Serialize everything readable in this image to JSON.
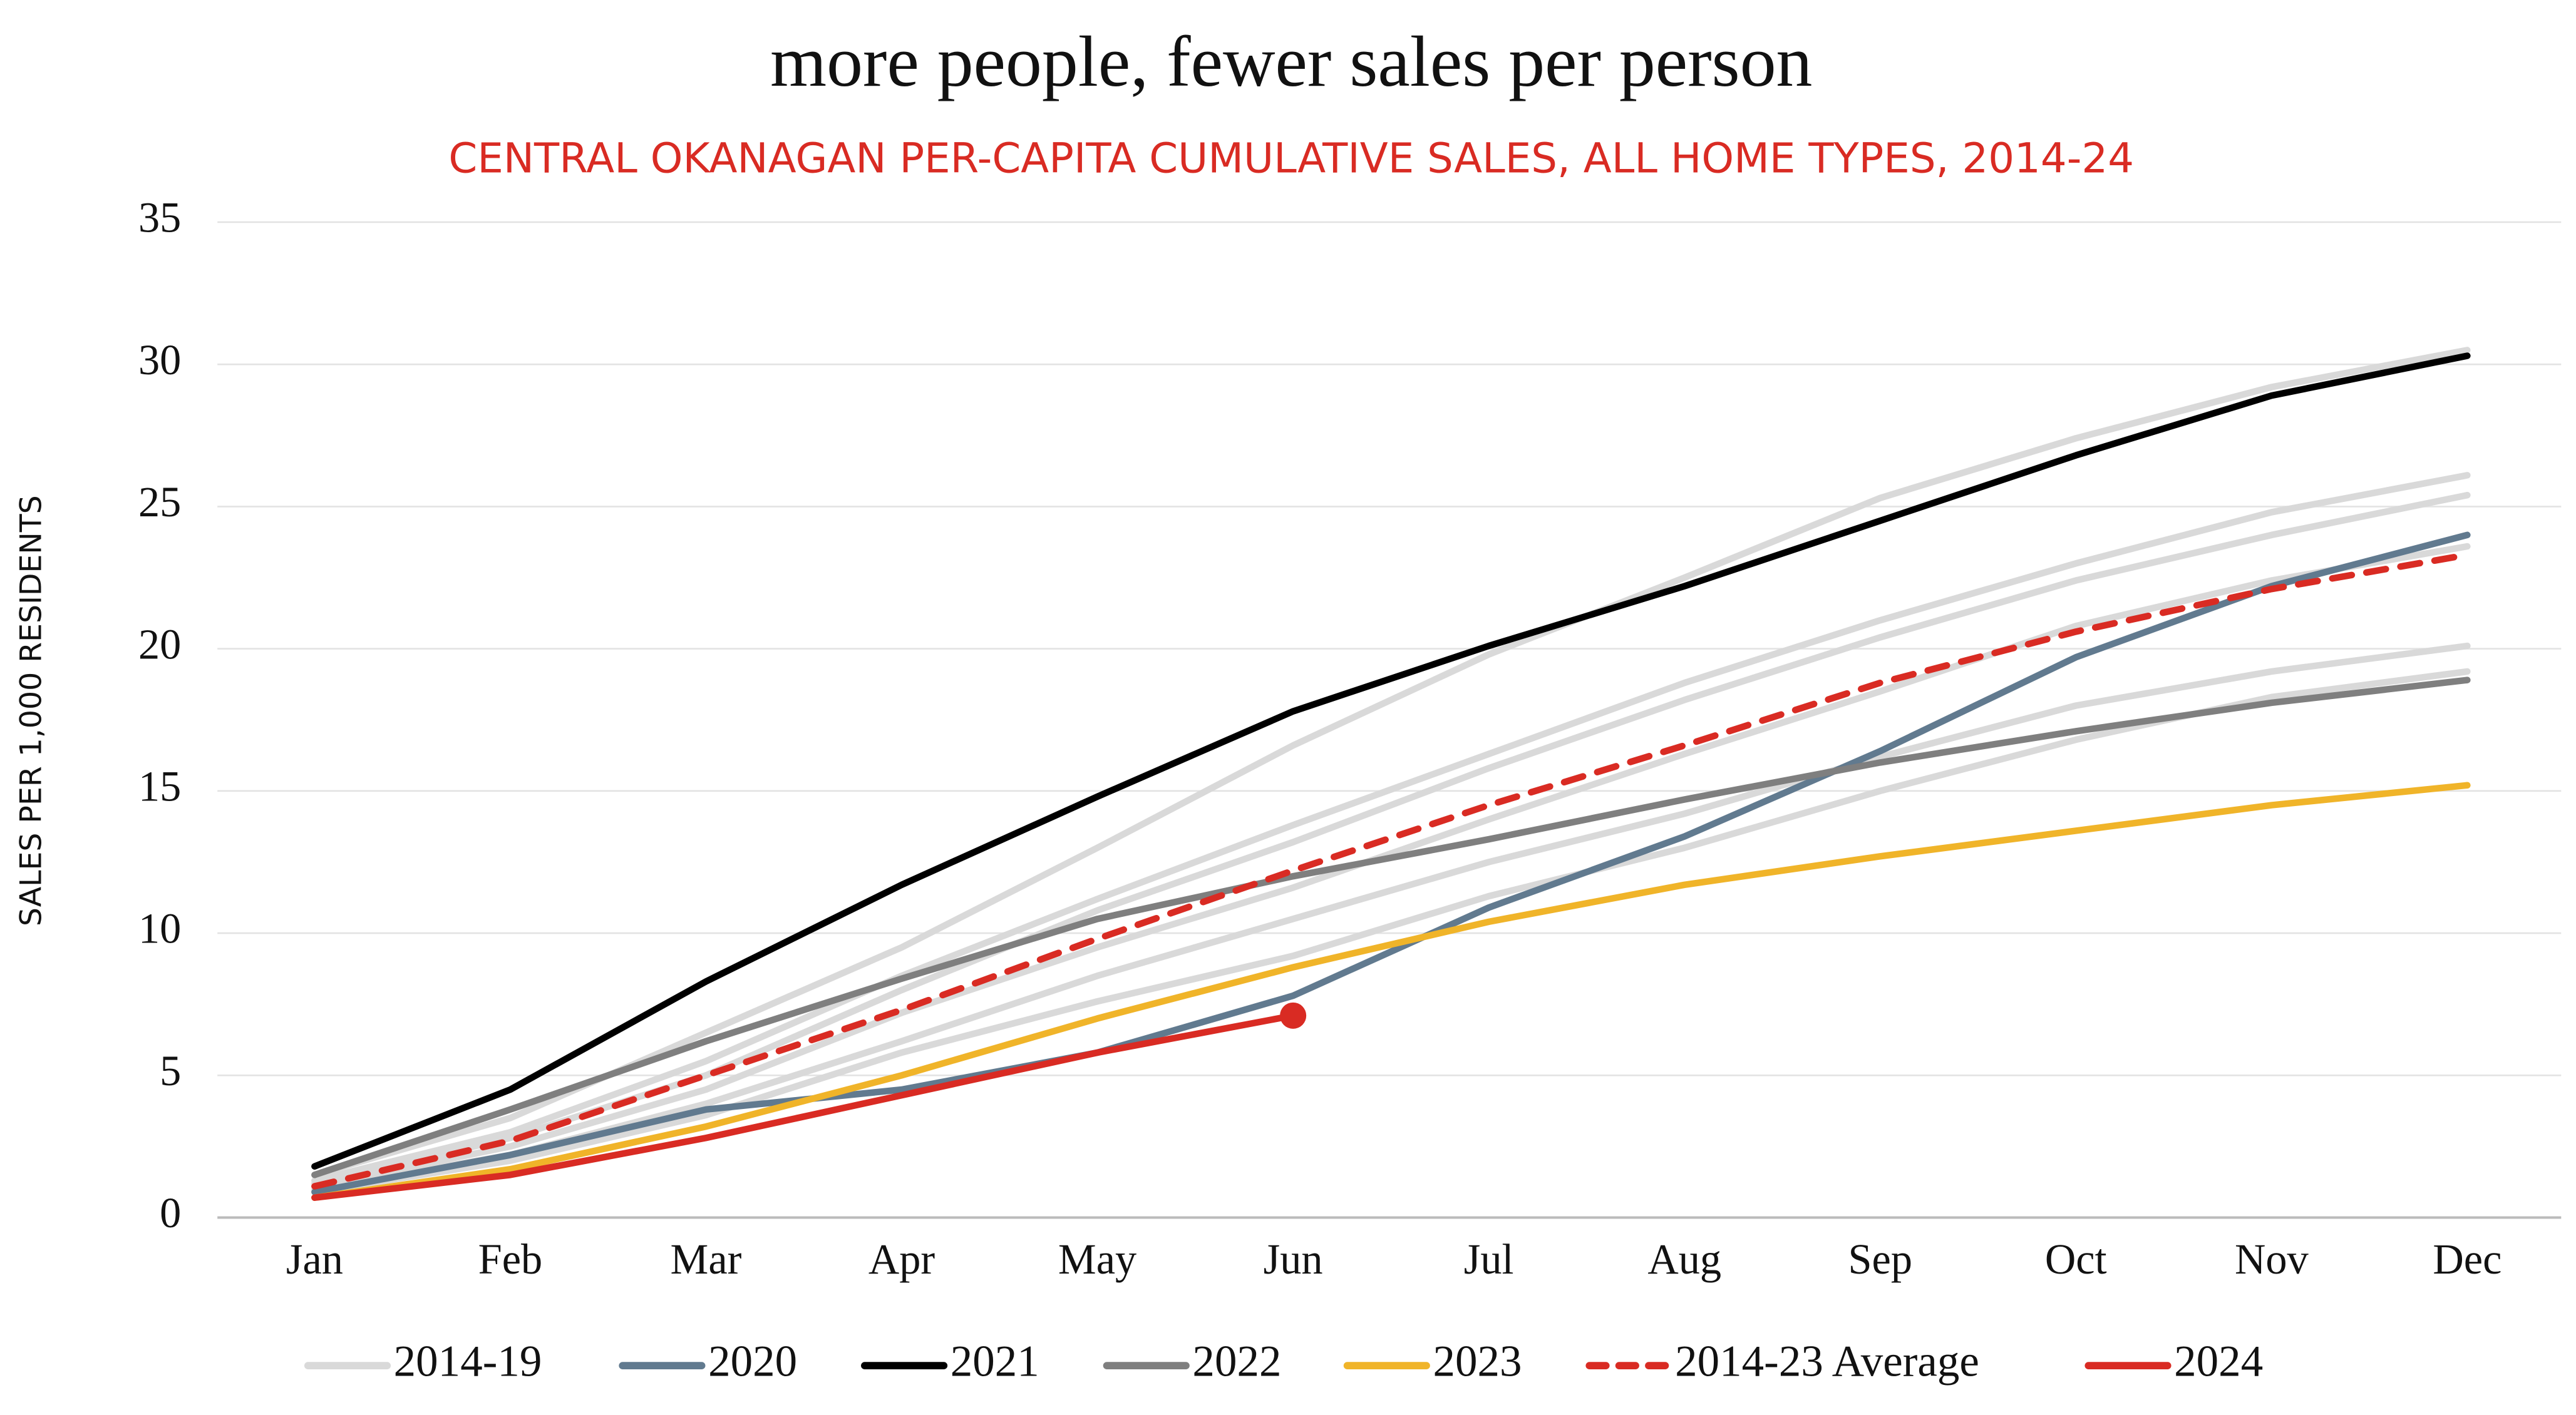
{
  "chart_data": {
    "type": "line",
    "title": "more people, fewer sales per person",
    "subtitle": "CENTRAL OKANAGAN PER-CAPITA CUMULATIVE SALES, ALL HOME TYPES, 2014-24",
    "y_label": "SALES PER 1,000 RESIDENTS",
    "categories": [
      "Jan",
      "Feb",
      "Mar",
      "Apr",
      "May",
      "Jun",
      "Jul",
      "Aug",
      "Sep",
      "Oct",
      "Nov",
      "Dec"
    ],
    "ylim": [
      0,
      35
    ],
    "yticks": [
      0,
      5,
      10,
      15,
      20,
      25,
      30,
      35
    ],
    "grid": true,
    "legend": "bottom",
    "series": [
      {
        "name": "2014-19",
        "color": "#d9d9d9",
        "width": 4,
        "values": [
          [
            1.5,
            3.5,
            6.5,
            9.5,
            13,
            16.6,
            19.8,
            22.5,
            25.3,
            27.4,
            29.2,
            30.5
          ],
          [
            1.3,
            3.0,
            5.5,
            8.5,
            11.2,
            13.8,
            16.3,
            18.8,
            21.0,
            23.0,
            24.8,
            26.1
          ],
          [
            1.2,
            2.8,
            5.0,
            8.0,
            10.8,
            13.2,
            15.8,
            18.2,
            20.4,
            22.4,
            24.0,
            25.4
          ],
          [
            1.1,
            2.5,
            4.5,
            7.2,
            9.5,
            11.6,
            14.0,
            16.3,
            18.5,
            20.8,
            22.4,
            23.6
          ],
          [
            1.0,
            2.2,
            4.0,
            6.2,
            8.5,
            10.5,
            12.5,
            14.2,
            16.2,
            18.0,
            19.2,
            20.1
          ],
          [
            0.9,
            2.0,
            3.6,
            5.8,
            7.6,
            9.2,
            11.3,
            13.0,
            15.0,
            16.8,
            18.3,
            19.2
          ]
        ]
      },
      {
        "name": "2020",
        "color": "#617a8f",
        "width": 4,
        "values": [
          0.9,
          2.2,
          3.8,
          4.5,
          5.8,
          7.8,
          10.9,
          13.4,
          16.4,
          19.7,
          22.2,
          24.0
        ]
      },
      {
        "name": "2021",
        "color": "#000000",
        "width": 4,
        "values": [
          1.8,
          4.5,
          8.3,
          11.7,
          14.8,
          17.8,
          20.1,
          22.2,
          24.5,
          26.8,
          28.9,
          30.3
        ]
      },
      {
        "name": "2022",
        "color": "#7f7f7f",
        "width": 4,
        "values": [
          1.5,
          3.8,
          6.2,
          8.4,
          10.5,
          12.0,
          13.3,
          14.7,
          16.0,
          17.1,
          18.1,
          18.9
        ]
      },
      {
        "name": "2023",
        "color": "#f0b429",
        "width": 4,
        "values": [
          0.7,
          1.7,
          3.2,
          5.0,
          7.0,
          8.8,
          10.4,
          11.7,
          12.7,
          13.6,
          14.5,
          15.2
        ]
      },
      {
        "name": "2014-23 Average",
        "color": "#d92b23",
        "width": 4,
        "dash": true,
        "values": [
          1.1,
          2.7,
          5.0,
          7.3,
          9.8,
          12.2,
          14.5,
          16.6,
          18.8,
          20.6,
          22.1,
          23.3
        ]
      },
      {
        "name": "2024",
        "color": "#d92b23",
        "width": 4,
        "end_marker": true,
        "values": [
          0.7,
          1.5,
          2.8,
          4.3,
          5.8,
          7.1,
          null,
          null,
          null,
          null,
          null,
          null
        ]
      }
    ]
  }
}
